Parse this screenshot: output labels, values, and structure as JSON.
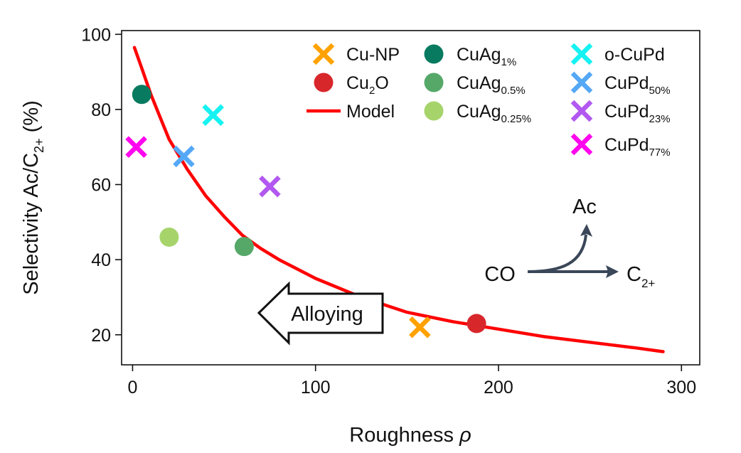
{
  "chart_data": {
    "type": "scatter",
    "xlabel": "Roughness",
    "xlabel_symbol": "ρ",
    "ylabel": "Selectivity Ac/C",
    "ylabel_sub": "2+",
    "ylabel_suffix": " (%)",
    "xlim": [
      -6,
      310
    ],
    "ylim": [
      12,
      101
    ],
    "xticks": [
      0,
      100,
      200,
      300
    ],
    "yticks": [
      20,
      40,
      60,
      80,
      100
    ],
    "grid": false,
    "legend_position": "top-right",
    "colors": {
      "Cu-NP": "#ffa200",
      "Cu2O": "#d8272b",
      "Model": "#ff0000",
      "CuAg1%": "#087a5f",
      "CuAg0.5%": "#55a868",
      "CuAg0.25%": "#a6d46b",
      "o-CuPd": "#16f2f2",
      "CuPd50%": "#55a8f6",
      "CuPd23%": "#b258f0",
      "CuPd77%": "#ff06ee"
    },
    "legend": [
      {
        "key": "Cu-NP",
        "base": "Cu-NP",
        "sub": "",
        "post": "",
        "marker": "x"
      },
      {
        "key": "Cu2O",
        "base": "Cu",
        "sub": "2",
        "post": "O",
        "marker": "circle"
      },
      {
        "key": "Model",
        "base": "Model",
        "sub": "",
        "post": "",
        "marker": "line"
      },
      {
        "key": "CuAg1%",
        "base": "CuAg",
        "sub": "1%",
        "post": "",
        "marker": "circle"
      },
      {
        "key": "CuAg0.5%",
        "base": "CuAg",
        "sub": "0.5%",
        "post": "",
        "marker": "circle"
      },
      {
        "key": "CuAg0.25%",
        "base": "CuAg",
        "sub": "0.25%",
        "post": "",
        "marker": "circle"
      },
      {
        "key": "o-CuPd",
        "base": "o-CuPd",
        "sub": "",
        "post": "",
        "marker": "x"
      },
      {
        "key": "CuPd50%",
        "base": "CuPd",
        "sub": "50%",
        "post": "",
        "marker": "x"
      },
      {
        "key": "CuPd23%",
        "base": "CuPd",
        "sub": "23%",
        "post": "",
        "marker": "x"
      },
      {
        "key": "CuPd77%",
        "base": "CuPd",
        "sub": "77%",
        "post": "",
        "marker": "x"
      }
    ],
    "series": [
      {
        "key": "Cu-NP",
        "marker": "x",
        "x": [
          157
        ],
        "y": [
          22
        ]
      },
      {
        "key": "Cu2O",
        "marker": "circle",
        "x": [
          188
        ],
        "y": [
          23
        ]
      },
      {
        "key": "CuAg1%",
        "marker": "circle",
        "x": [
          5
        ],
        "y": [
          84
        ]
      },
      {
        "key": "CuAg0.5%",
        "marker": "circle",
        "x": [
          61
        ],
        "y": [
          43.5
        ]
      },
      {
        "key": "CuAg0.25%",
        "marker": "circle",
        "x": [
          20
        ],
        "y": [
          46
        ]
      },
      {
        "key": "o-CuPd",
        "marker": "x",
        "x": [
          44
        ],
        "y": [
          78.5
        ]
      },
      {
        "key": "CuPd50%",
        "marker": "x",
        "x": [
          28
        ],
        "y": [
          67.5
        ]
      },
      {
        "key": "CuPd23%",
        "marker": "x",
        "x": [
          75
        ],
        "y": [
          59.5
        ]
      },
      {
        "key": "CuPd77%",
        "marker": "x",
        "x": [
          2
        ],
        "y": [
          70
        ]
      }
    ],
    "model_line": {
      "key": "Model",
      "x": [
        1,
        5,
        10,
        15,
        20,
        25,
        30,
        40,
        50,
        60,
        70,
        80,
        90,
        100,
        125,
        150,
        175,
        200,
        225,
        250,
        275,
        290
      ],
      "y": [
        96.5,
        91,
        84,
        78,
        72,
        68,
        64,
        57,
        51.5,
        46.5,
        43,
        40,
        37.5,
        35,
        30,
        26,
        23.5,
        21.5,
        19.5,
        18,
        16.5,
        15.5
      ]
    },
    "annotations": {
      "alloying": "Alloying",
      "reaction_from": "CO",
      "reaction_up": "Ac",
      "reaction_right": "C",
      "reaction_right_sub": "2+"
    }
  }
}
